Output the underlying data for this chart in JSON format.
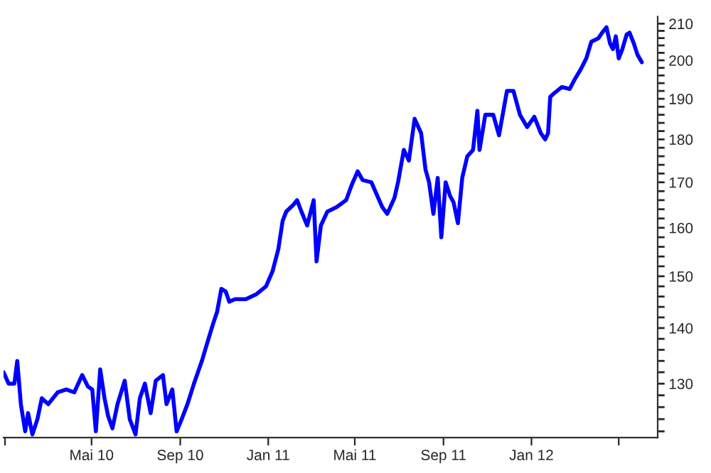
{
  "chart_data": {
    "type": "line",
    "log": "y",
    "grid": false,
    "legend": false,
    "marker": "none",
    "line_style": "solid",
    "xlim": [
      "2009-12-30",
      "2012-06-24"
    ],
    "xticks": [
      {
        "value": "2010-01-01",
        "label": null
      },
      {
        "value": "2010-05-01",
        "label": "Mai 10"
      },
      {
        "value": "2010-09-01",
        "label": "Sep 10"
      },
      {
        "value": "2011-01-01",
        "label": "Jan 11"
      },
      {
        "value": "2011-05-01",
        "label": "Mai 11"
      },
      {
        "value": "2011-09-01",
        "label": "Sep 11"
      },
      {
        "value": "2012-01-01",
        "label": "Jan 12"
      },
      {
        "value": "2012-05-01",
        "label": null
      }
    ],
    "ylim": [
      121,
      212
    ],
    "yticks": [
      {
        "value": 122,
        "label": null
      },
      {
        "value": 124,
        "label": null
      },
      {
        "value": 126,
        "label": null
      },
      {
        "value": 128,
        "label": null
      },
      130,
      {
        "value": 132,
        "label": null
      },
      {
        "value": 134,
        "label": null
      },
      {
        "value": 136,
        "label": null
      },
      {
        "value": 138,
        "label": null
      },
      140,
      {
        "value": 142,
        "label": null
      },
      {
        "value": 144,
        "label": null
      },
      {
        "value": 146,
        "label": null
      },
      {
        "value": 148,
        "label": null
      },
      150,
      {
        "value": 152,
        "label": null
      },
      {
        "value": 154,
        "label": null
      },
      {
        "value": 156,
        "label": null
      },
      {
        "value": 158,
        "label": null
      },
      160,
      {
        "value": 162,
        "label": null
      },
      {
        "value": 164,
        "label": null
      },
      {
        "value": 166,
        "label": null
      },
      {
        "value": 168,
        "label": null
      },
      170,
      {
        "value": 172,
        "label": null
      },
      {
        "value": 174,
        "label": null
      },
      {
        "value": 176,
        "label": null
      },
      {
        "value": 178,
        "label": null
      },
      180,
      {
        "value": 182,
        "label": null
      },
      {
        "value": 184,
        "label": null
      },
      {
        "value": 186,
        "label": null
      },
      {
        "value": 188,
        "label": null
      },
      190,
      {
        "value": 192,
        "label": null
      },
      {
        "value": 194,
        "label": null
      },
      {
        "value": 196,
        "label": null
      },
      {
        "value": 198,
        "label": null
      },
      200,
      {
        "value": 202,
        "label": null
      },
      {
        "value": 204,
        "label": null
      },
      {
        "value": 206,
        "label": null
      },
      {
        "value": 208,
        "label": null
      },
      210
    ],
    "series": [
      {
        "color": "#0000ff",
        "x": [
          "2009-12-30",
          "2010-01-06",
          "2010-01-14",
          "2010-01-18",
          "2010-01-23",
          "2010-01-29",
          "2010-02-02",
          "2010-02-08",
          "2010-02-15",
          "2010-02-21",
          "2010-03-02",
          "2010-03-15",
          "2010-03-27",
          "2010-04-07",
          "2010-04-18",
          "2010-04-26",
          "2010-05-02",
          "2010-05-07",
          "2010-05-13",
          "2010-05-19",
          "2010-05-24",
          "2010-05-30",
          "2010-06-06",
          "2010-06-16",
          "2010-06-23",
          "2010-07-01",
          "2010-07-07",
          "2010-07-14",
          "2010-07-22",
          "2010-07-29",
          "2010-08-08",
          "2010-08-13",
          "2010-08-21",
          "2010-08-27",
          "2010-09-03",
          "2010-09-11",
          "2010-09-20",
          "2010-10-01",
          "2010-10-09",
          "2010-10-17",
          "2010-10-22",
          "2010-10-28",
          "2010-11-03",
          "2010-11-08",
          "2010-11-16",
          "2010-12-01",
          "2010-12-16",
          "2010-12-29",
          "2011-01-07",
          "2011-01-15",
          "2011-01-21",
          "2011-01-26",
          "2011-02-05",
          "2011-02-10",
          "2011-02-16",
          "2011-02-24",
          "2011-03-05",
          "2011-03-09",
          "2011-03-15",
          "2011-03-24",
          "2011-04-06",
          "2011-04-19",
          "2011-04-27",
          "2011-05-05",
          "2011-05-12",
          "2011-05-24",
          "2011-06-08",
          "2011-06-15",
          "2011-06-25",
          "2011-06-30",
          "2011-07-08",
          "2011-07-15",
          "2011-07-23",
          "2011-08-01",
          "2011-08-07",
          "2011-08-12",
          "2011-08-18",
          "2011-08-24",
          "2011-08-29",
          "2011-09-04",
          "2011-09-10",
          "2011-09-15",
          "2011-09-21",
          "2011-09-27",
          "2011-10-04",
          "2011-10-12",
          "2011-10-18",
          "2011-10-21",
          "2011-10-29",
          "2011-11-09",
          "2011-11-17",
          "2011-11-28",
          "2011-12-07",
          "2011-12-16",
          "2011-12-26",
          "2012-01-05",
          "2012-01-14",
          "2012-01-20",
          "2012-01-24",
          "2012-01-27",
          "2012-02-02",
          "2012-02-12",
          "2012-02-23",
          "2012-03-01",
          "2012-03-09",
          "2012-03-17",
          "2012-03-24",
          "2012-04-03",
          "2012-04-08",
          "2012-04-14",
          "2012-04-19",
          "2012-04-23",
          "2012-04-27",
          "2012-05-01",
          "2012-05-06",
          "2012-05-12",
          "2012-05-16",
          "2012-05-22",
          "2012-05-27",
          "2012-06-02"
        ],
        "values": [
          132,
          130,
          130,
          134,
          126.5,
          122,
          125,
          121.5,
          124,
          127.5,
          126.5,
          128.5,
          129,
          128.5,
          131.5,
          129.5,
          129,
          122,
          132.5,
          127.5,
          124.5,
          122.5,
          126.5,
          130.5,
          124,
          121.5,
          127.5,
          130,
          125,
          130.5,
          131.5,
          126.5,
          129,
          122,
          124,
          126.5,
          130,
          134,
          137.5,
          141,
          143,
          147.5,
          147,
          145,
          145.5,
          145.5,
          146.5,
          148,
          151,
          155.5,
          161.5,
          163.5,
          165,
          166,
          163.5,
          160.5,
          166,
          153,
          160.5,
          163.5,
          164.5,
          166,
          169.5,
          172.5,
          170.5,
          170,
          164.5,
          163,
          166.5,
          170,
          177.5,
          175,
          185,
          181.5,
          173,
          170,
          163,
          171,
          158,
          170,
          167,
          165.5,
          161,
          171,
          176,
          177.5,
          187,
          177.5,
          186,
          186,
          181,
          192,
          192,
          186,
          183,
          185.5,
          181.5,
          180,
          181.5,
          190.5,
          191.5,
          193,
          192.5,
          195,
          197.5,
          200.5,
          205,
          206,
          207.5,
          209,
          204.5,
          203,
          206.5,
          200.5,
          203,
          207,
          207.5,
          204.5,
          201.5,
          199.5
        ]
      }
    ]
  }
}
